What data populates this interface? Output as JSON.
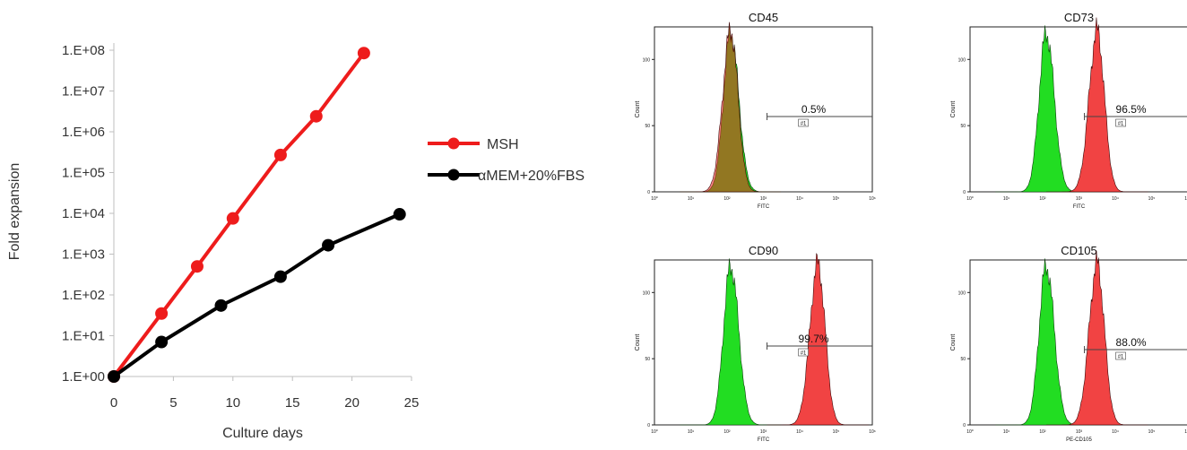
{
  "chart_data": [
    {
      "type": "line",
      "title": "",
      "xlabel": "Culture days",
      "ylabel": "Fold expansion",
      "xlim": [
        0,
        25
      ],
      "x_ticks": [
        "0",
        "5",
        "10",
        "15",
        "20",
        "25"
      ],
      "y_scale": "log",
      "ylim": [
        1,
        100000000
      ],
      "y_ticks": [
        "1.E+00",
        "1.E+01",
        "1.E+02",
        "1.E+03",
        "1.E+04",
        "1.E+05",
        "1.E+06",
        "1.E+07",
        "1.E+08"
      ],
      "legend_position": "right",
      "series": [
        {
          "name": "MSH",
          "color": "#ee1c1c",
          "x": [
            0,
            4,
            7,
            10,
            14,
            17,
            21
          ],
          "y": [
            1,
            35,
            500,
            7500,
            270000,
            2400000,
            85000000
          ]
        },
        {
          "name": "αMEM+20%FBS",
          "color": "#000000",
          "x": [
            0,
            4,
            9,
            14,
            18,
            24
          ],
          "y": [
            1,
            7,
            55,
            280,
            1650,
            9500
          ]
        }
      ]
    },
    {
      "type": "histogram",
      "title": "CD45",
      "xlabel": "FITC",
      "ylabel": "Count",
      "y_ticks": [
        "0",
        "50",
        "100"
      ],
      "x_ticks": [
        "10⁰",
        "10¹",
        "10²",
        "10³",
        "10⁴",
        "10⁵",
        "10⁶"
      ],
      "gate_value": "0.5%",
      "gate_label": "#1",
      "control_color": "#22dd22",
      "sample_color": "#ee2222",
      "control_peak_log": 2.1,
      "sample_peak_log": 2.1
    },
    {
      "type": "histogram",
      "title": "CD73",
      "xlabel": "FITC",
      "ylabel": "Count",
      "y_ticks": [
        "0",
        "50",
        "100"
      ],
      "x_ticks": [
        "10⁰",
        "10¹",
        "10²",
        "10³",
        "10⁴",
        "10⁵",
        "10⁶"
      ],
      "gate_value": "96.5%",
      "gate_label": "#1",
      "control_color": "#22dd22",
      "sample_color": "#ee2222",
      "control_peak_log": 2.1,
      "sample_peak_log": 3.5
    },
    {
      "type": "histogram",
      "title": "CD90",
      "xlabel": "FITC",
      "ylabel": "Count",
      "y_ticks": [
        "0",
        "50",
        "100"
      ],
      "x_ticks": [
        "10⁰",
        "10¹",
        "10²",
        "10³",
        "10⁴",
        "10⁵",
        "10⁶"
      ],
      "gate_value": "99.7%",
      "gate_label": "#1",
      "control_color": "#22dd22",
      "sample_color": "#ee2222",
      "control_peak_log": 2.1,
      "sample_peak_log": 4.5
    },
    {
      "type": "histogram",
      "title": "CD105",
      "xlabel": "PE-CD105",
      "ylabel": "Count",
      "y_ticks": [
        "0",
        "50",
        "100"
      ],
      "x_ticks": [
        "10⁰",
        "10¹",
        "10²",
        "10³",
        "10⁴",
        "10⁵",
        "10⁶"
      ],
      "gate_value": "88.0%",
      "gate_label": "#1",
      "control_color": "#22dd22",
      "sample_color": "#ee2222",
      "control_peak_log": 2.1,
      "sample_peak_log": 3.5
    }
  ]
}
